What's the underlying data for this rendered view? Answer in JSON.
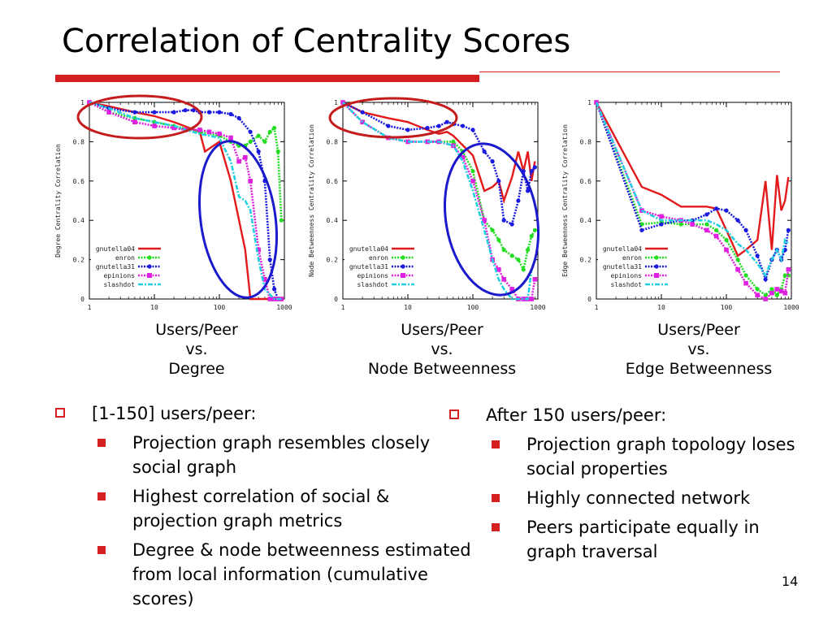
{
  "slide": {
    "title": "Correlation of Centrality Scores",
    "page_number": "14",
    "accent_color": "#d42020"
  },
  "captions": [
    {
      "line1": "Users/Peer",
      "line2": "vs.",
      "line3": "Degree"
    },
    {
      "line1": "Users/Peer",
      "line2": "vs.",
      "line3": "Node Betweenness"
    },
    {
      "line1": "Users/Peer",
      "line2": "vs.",
      "line3": "Edge Betweenness"
    }
  ],
  "left_bullets": {
    "heading": "[1-150] users/peer:",
    "items": [
      "Projection graph resembles closely social graph",
      "Highest correlation of social & projection graph metrics",
      "Degree & node betweenness estimated from local information (cumulative scores)"
    ]
  },
  "right_bullets": {
    "heading": "After 150 users/peer:",
    "items": [
      "Projection graph topology loses social properties",
      "Highly connected network",
      "Peers participate equally in graph traversal"
    ]
  },
  "chart_data": [
    {
      "type": "line",
      "ylabel": "Degree Centrality Correlation",
      "xscale": "log",
      "xlim": [
        1,
        1000
      ],
      "ylim": [
        0,
        1
      ],
      "xticks": [
        "1",
        "10",
        "100",
        "1000"
      ],
      "yticks": [
        "0",
        "0.2",
        "0.4",
        "0.6",
        "0.8",
        "1"
      ],
      "legend_position": "bottom-left",
      "series": [
        {
          "name": "gnutella04",
          "color": "#e31a1c",
          "x": [
            1,
            2,
            5,
            10,
            20,
            50,
            60,
            100,
            150,
            250,
            300,
            400,
            700
          ],
          "y": [
            1,
            0.98,
            0.95,
            0.93,
            0.9,
            0.85,
            0.75,
            0.8,
            0.6,
            0.25,
            0,
            0,
            0
          ]
        },
        {
          "name": "enron",
          "color": "#22dd22",
          "x": [
            1,
            2,
            5,
            10,
            20,
            50,
            100,
            150,
            200,
            250,
            300,
            400,
            500,
            600,
            700,
            800,
            900
          ],
          "y": [
            1,
            0.95,
            0.92,
            0.9,
            0.88,
            0.85,
            0.83,
            0.8,
            0.78,
            0.78,
            0.8,
            0.83,
            0.8,
            0.85,
            0.87,
            0.75,
            0.4
          ]
        },
        {
          "name": "gnutella31",
          "color": "#1a1ae0",
          "x": [
            1,
            2,
            5,
            10,
            20,
            30,
            40,
            50,
            70,
            100,
            150,
            200,
            300,
            400,
            500,
            600,
            700,
            800,
            900
          ],
          "y": [
            1,
            0.97,
            0.95,
            0.95,
            0.95,
            0.96,
            0.96,
            0.95,
            0.95,
            0.95,
            0.94,
            0.92,
            0.85,
            0.75,
            0.6,
            0.2,
            0.05,
            0,
            0
          ]
        },
        {
          "name": "epinions",
          "color": "#e020e0",
          "x": [
            1,
            2,
            5,
            10,
            20,
            30,
            50,
            70,
            100,
            150,
            200,
            250,
            300,
            400,
            500,
            600,
            700,
            800,
            900
          ],
          "y": [
            1,
            0.95,
            0.9,
            0.88,
            0.87,
            0.86,
            0.86,
            0.85,
            0.84,
            0.82,
            0.7,
            0.72,
            0.6,
            0.25,
            0.1,
            0,
            0,
            0,
            0
          ]
        },
        {
          "name": "slashdot",
          "color": "#20d0e0",
          "x": [
            1,
            2,
            5,
            10,
            20,
            30,
            50,
            70,
            100,
            150,
            200,
            250,
            300,
            400,
            500,
            700,
            900
          ],
          "y": [
            1,
            0.97,
            0.92,
            0.9,
            0.88,
            0.86,
            0.84,
            0.83,
            0.82,
            0.7,
            0.52,
            0.5,
            0.45,
            0.2,
            0.05,
            0,
            0
          ]
        }
      ]
    },
    {
      "type": "line",
      "ylabel": "Node Betweenness Centrality Correlation",
      "xscale": "log",
      "xlim": [
        1,
        1000
      ],
      "ylim": [
        0,
        1
      ],
      "xticks": [
        "1",
        "10",
        "100",
        "1000"
      ],
      "yticks": [
        "0",
        "0.2",
        "0.4",
        "0.6",
        "0.8",
        "1"
      ],
      "legend_position": "bottom-left",
      "series": [
        {
          "name": "gnutella04",
          "color": "#e31a1c",
          "x": [
            1,
            2,
            5,
            10,
            20,
            30,
            40,
            50,
            100,
            150,
            200,
            250,
            300,
            400,
            500,
            600,
            700,
            800,
            900
          ],
          "y": [
            1,
            0.95,
            0.92,
            0.9,
            0.86,
            0.84,
            0.85,
            0.83,
            0.73,
            0.55,
            0.57,
            0.6,
            0.5,
            0.62,
            0.75,
            0.65,
            0.75,
            0.6,
            0.7
          ]
        },
        {
          "name": "enron",
          "color": "#22dd22",
          "x": [
            1,
            2,
            5,
            10,
            20,
            30,
            50,
            70,
            100,
            150,
            200,
            250,
            300,
            400,
            500,
            600,
            700,
            800,
            900
          ],
          "y": [
            1,
            0.9,
            0.82,
            0.8,
            0.8,
            0.8,
            0.8,
            0.75,
            0.65,
            0.4,
            0.35,
            0.3,
            0.25,
            0.22,
            0.2,
            0.15,
            0.25,
            0.32,
            0.35
          ]
        },
        {
          "name": "gnutella31",
          "color": "#1a1ae0",
          "x": [
            1,
            2,
            5,
            10,
            20,
            30,
            40,
            50,
            70,
            100,
            150,
            200,
            250,
            300,
            400,
            500,
            600,
            700,
            800,
            900
          ],
          "y": [
            1,
            0.95,
            0.88,
            0.86,
            0.87,
            0.88,
            0.9,
            0.89,
            0.88,
            0.86,
            0.75,
            0.7,
            0.6,
            0.4,
            0.38,
            0.5,
            0.65,
            0.55,
            0.65,
            0.67
          ]
        },
        {
          "name": "epinions",
          "color": "#e020e0",
          "x": [
            1,
            2,
            5,
            10,
            20,
            30,
            50,
            70,
            100,
            150,
            200,
            250,
            300,
            400,
            500,
            600,
            700,
            800,
            900
          ],
          "y": [
            1,
            0.9,
            0.82,
            0.8,
            0.8,
            0.8,
            0.78,
            0.72,
            0.6,
            0.4,
            0.2,
            0.15,
            0.1,
            0.05,
            0,
            0,
            0,
            0,
            0.1
          ]
        },
        {
          "name": "slashdot",
          "color": "#20d0e0",
          "x": [
            1,
            2,
            5,
            10,
            20,
            30,
            50,
            70,
            100,
            150,
            200,
            250,
            300,
            400,
            500,
            600,
            700,
            800,
            900
          ],
          "y": [
            1,
            0.9,
            0.82,
            0.8,
            0.8,
            0.8,
            0.78,
            0.7,
            0.55,
            0.35,
            0.2,
            0.1,
            0.05,
            0,
            0,
            0,
            0,
            0.15,
            0.2
          ]
        }
      ]
    },
    {
      "type": "line",
      "ylabel": "Edge Betweenness Centrality Correlation",
      "xscale": "log",
      "xlim": [
        1,
        1000
      ],
      "ylim": [
        0,
        1
      ],
      "xticks": [
        "1",
        "10",
        "100",
        "1000"
      ],
      "yticks": [
        "0",
        "0.2",
        "0.4",
        "0.6",
        "0.8",
        "1"
      ],
      "legend_position": "bottom-left",
      "series": [
        {
          "name": "gnutella04",
          "color": "#e31a1c",
          "x": [
            1,
            5,
            10,
            20,
            30,
            50,
            70,
            100,
            150,
            200,
            300,
            400,
            500,
            600,
            700,
            800,
            900
          ],
          "y": [
            1,
            0.57,
            0.53,
            0.47,
            0.47,
            0.47,
            0.46,
            0.35,
            0.22,
            0.25,
            0.3,
            0.6,
            0.25,
            0.63,
            0.45,
            0.5,
            0.62
          ]
        },
        {
          "name": "enron",
          "color": "#22dd22",
          "x": [
            1,
            5,
            10,
            20,
            30,
            50,
            70,
            100,
            150,
            200,
            300,
            400,
            500,
            600,
            700,
            800,
            900
          ],
          "y": [
            1,
            0.38,
            0.39,
            0.38,
            0.38,
            0.38,
            0.35,
            0.3,
            0.2,
            0.12,
            0.05,
            0.02,
            0.05,
            0.02,
            0.05,
            0.12,
            0.12
          ]
        },
        {
          "name": "gnutella31",
          "color": "#1a1ae0",
          "x": [
            1,
            5,
            10,
            20,
            30,
            50,
            70,
            100,
            150,
            200,
            300,
            400,
            500,
            600,
            700,
            800,
            900
          ],
          "y": [
            1,
            0.35,
            0.38,
            0.4,
            0.4,
            0.43,
            0.46,
            0.45,
            0.4,
            0.35,
            0.22,
            0.1,
            0.2,
            0.25,
            0.2,
            0.25,
            0.35
          ]
        },
        {
          "name": "epinions",
          "color": "#e020e0",
          "x": [
            1,
            5,
            10,
            20,
            30,
            50,
            70,
            100,
            150,
            200,
            300,
            400,
            500,
            600,
            700,
            800,
            900
          ],
          "y": [
            1,
            0.45,
            0.42,
            0.4,
            0.38,
            0.35,
            0.32,
            0.25,
            0.15,
            0.08,
            0.02,
            0,
            0.03,
            0.05,
            0.04,
            0.03,
            0.15
          ]
        },
        {
          "name": "slashdot",
          "color": "#20d0e0",
          "x": [
            1,
            5,
            10,
            20,
            30,
            50,
            70,
            100,
            150,
            200,
            300,
            400,
            500,
            600,
            700,
            800,
            900
          ],
          "y": [
            1,
            0.45,
            0.4,
            0.4,
            0.4,
            0.4,
            0.38,
            0.35,
            0.28,
            0.25,
            0.18,
            0.12,
            0.2,
            0.25,
            0.2,
            0.3,
            0.28
          ]
        }
      ]
    }
  ]
}
